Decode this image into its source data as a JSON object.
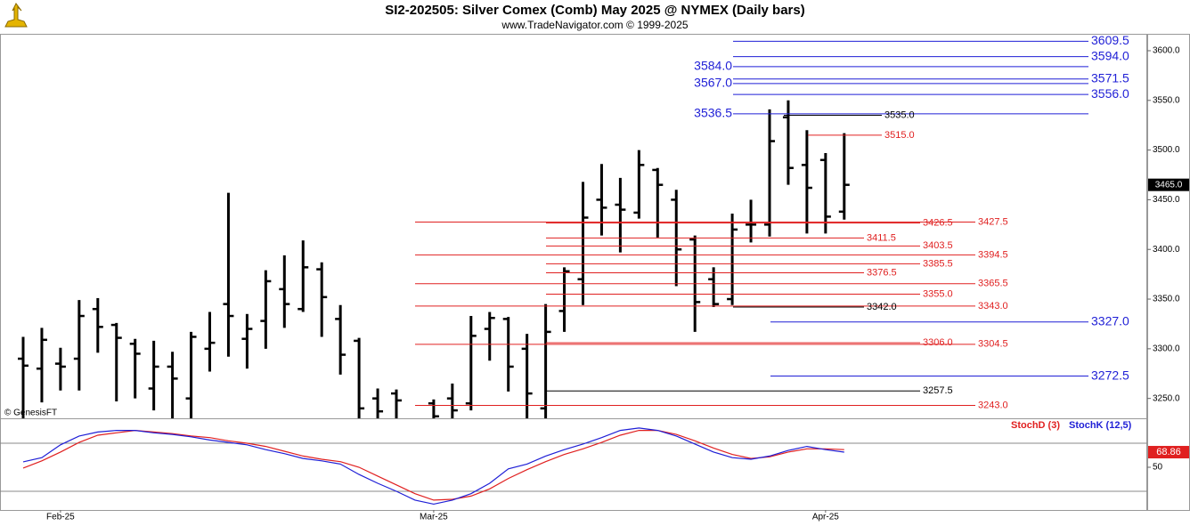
{
  "chart_data": [
    {
      "type": "ohlc",
      "title": "SI2-202505:  Silver Comex (Comb) May 2025 @ NYMEX  (Daily bars)",
      "subtitle": "www.TradeNavigator.com © 1999-2025",
      "credit": "© GenesisFT",
      "color": "#000000",
      "open": [
        3290,
        3280,
        3285,
        3290,
        3340,
        3324,
        3305,
        3260,
        3282,
        3250,
        3300,
        3345,
        3310,
        3328,
        3360,
        3340,
        3380,
        3330,
        3308,
        3250,
        3255,
        null,
        3245,
        3250,
        3245,
        3320,
        3330,
        3300,
        3240,
        3338,
        3370,
        3450,
        3445,
        3437,
        3480,
        3450,
        3410,
        3370,
        3350,
        3425,
        3425,
        3533,
        3485,
        3490,
        3438
      ],
      "high": [
        3312,
        3321,
        3301,
        3349,
        3351,
        3326,
        3310,
        3308,
        3297,
        3317,
        3337,
        3457,
        3335,
        3379,
        3394,
        3409,
        3387,
        3344,
        3311,
        3260,
        3259,
        null,
        3249,
        3265,
        3333,
        3337,
        3332,
        3315,
        3345,
        3382,
        3468,
        3486,
        3472,
        3500,
        3482,
        3460,
        3414,
        3382,
        3436,
        3450,
        3541,
        3550,
        3520,
        3497,
        3517
      ],
      "low": [
        3215,
        3246,
        3258,
        3258,
        3296,
        3247,
        3250,
        3238,
        3225,
        3220,
        3277,
        3292,
        3280,
        3300,
        3321,
        3337,
        3312,
        3274,
        3220,
        3225,
        3225,
        null,
        3225,
        3228,
        3238,
        3288,
        3257,
        3225,
        3225,
        3317,
        3344,
        3414,
        3397,
        3431,
        3412,
        3363,
        3317,
        3342,
        3344,
        3407,
        3413,
        3465,
        3416,
        3416,
        3430
      ],
      "close": [
        3283,
        3309,
        3282,
        3333,
        3322,
        3311,
        3295,
        3282,
        3270,
        3312,
        3306,
        3333,
        3320,
        3368,
        3345,
        3382,
        3352,
        3294,
        3240,
        3237,
        3248,
        null,
        3232,
        3238,
        3313,
        3331,
        3282,
        3255,
        3317,
        3378,
        3432,
        3442,
        3440,
        3485,
        3465,
        3400,
        3347,
        3345,
        3420,
        3425,
        3509,
        3482,
        3462,
        3433,
        3465
      ],
      "ylim": [
        3230,
        3617
      ],
      "yticks": [
        {
          "value": 3250,
          "label": "3250.0"
        },
        {
          "value": 3300,
          "label": "3300.0"
        },
        {
          "value": 3350,
          "label": "3350.0"
        },
        {
          "value": 3400,
          "label": "3400.0"
        },
        {
          "value": 3450,
          "label": "3450.0"
        },
        {
          "value": 3500,
          "label": "3500.0"
        },
        {
          "value": 3550,
          "label": "3550.0"
        },
        {
          "value": 3600,
          "label": "3600.0"
        }
      ],
      "last_price": {
        "value": 3465,
        "label": "3465.0"
      },
      "levels": [
        {
          "value": 3609.5,
          "label": "3609.5",
          "color": "#1f1fd6"
        },
        {
          "value": 3594.0,
          "label": "3594.0",
          "color": "#1f1fd6"
        },
        {
          "value": 3584.0,
          "label": "3584.0",
          "color": "#1f1fd6"
        },
        {
          "value": 3571.5,
          "label": "3571.5",
          "color": "#1f1fd6"
        },
        {
          "value": 3567.0,
          "label": "3567.0",
          "color": "#1f1fd6"
        },
        {
          "value": 3556.0,
          "label": "3556.0",
          "color": "#1f1fd6"
        },
        {
          "value": 3536.5,
          "label": "3536.5",
          "color": "#1f1fd6"
        },
        {
          "value": 3535.0,
          "label": "3535.0",
          "color": "#000000"
        },
        {
          "value": 3515.0,
          "label": "3515.0",
          "color": "#e02020"
        },
        {
          "value": 3427.5,
          "label": "3427.5",
          "color": "#e02020"
        },
        {
          "value": 3426.5,
          "label": "3426.5",
          "color": "#e02020"
        },
        {
          "value": 3411.5,
          "label": "3411.5",
          "color": "#e02020"
        },
        {
          "value": 3403.5,
          "label": "3403.5",
          "color": "#e02020"
        },
        {
          "value": 3394.5,
          "label": "3394.5",
          "color": "#e02020"
        },
        {
          "value": 3385.5,
          "label": "3385.5",
          "color": "#e02020"
        },
        {
          "value": 3376.5,
          "label": "3376.5",
          "color": "#e02020"
        },
        {
          "value": 3365.5,
          "label": "3365.5",
          "color": "#e02020"
        },
        {
          "value": 3355.0,
          "label": "3355.0",
          "color": "#e02020"
        },
        {
          "value": 3343.0,
          "label": "3343.0",
          "color": "#e02020"
        },
        {
          "value": 3342.0,
          "label": "3342.0",
          "color": "#000000"
        },
        {
          "value": 3327.0,
          "label": "3327.0",
          "color": "#1f1fd6"
        },
        {
          "value": 3306.0,
          "label": "3306.0",
          "color": "#e02020"
        },
        {
          "value": 3304.5,
          "label": "3304.5",
          "color": "#e02020"
        },
        {
          "value": 3272.5,
          "label": "3272.5",
          "color": "#1f1fd6"
        },
        {
          "value": 3257.5,
          "label": "3257.5",
          "color": "#000000"
        },
        {
          "value": 3243.0,
          "label": "3243.0",
          "color": "#e02020"
        }
      ]
    },
    {
      "type": "line",
      "categories": [
        null,
        null,
        "Feb-25",
        null,
        null,
        null,
        null,
        null,
        null,
        null,
        null,
        null,
        null,
        null,
        null,
        null,
        null,
        null,
        null,
        null,
        null,
        null,
        "Mar-25",
        null,
        null,
        null,
        null,
        null,
        null,
        null,
        null,
        null,
        null,
        null,
        null,
        null,
        null,
        null,
        null,
        null,
        null,
        null,
        null,
        "Apr-25",
        null
      ],
      "series": [
        {
          "name": "StochD (3)",
          "color": "#e02020",
          "values": [
            49,
            58,
            69,
            81,
            90,
            93,
            96,
            94,
            92,
            89,
            87,
            83,
            80,
            76,
            70,
            64,
            60,
            57,
            50,
            39,
            28,
            17,
            9,
            10,
            14,
            23,
            36,
            47,
            57,
            66,
            73,
            81,
            90,
            96,
            96,
            91,
            83,
            74,
            66,
            61,
            63,
            69,
            73,
            73,
            72
          ]
        },
        {
          "name": "StochK (12,5)",
          "color": "#1f1fd6",
          "values": [
            56.7,
            62,
            78,
            89,
            94,
            96,
            96,
            93,
            91,
            88,
            84,
            81,
            78,
            72,
            67,
            61,
            58,
            54,
            41,
            30,
            20,
            9,
            4,
            9,
            17,
            30,
            48,
            54,
            64,
            72,
            79,
            87,
            96,
            99,
            96,
            89,
            79,
            69,
            62,
            60,
            64,
            71,
            76,
            72,
            68.86
          ]
        }
      ],
      "ylim": [
        0,
        100
      ],
      "yticks": [
        50
      ],
      "bands": [
        20,
        80
      ]
    }
  ]
}
